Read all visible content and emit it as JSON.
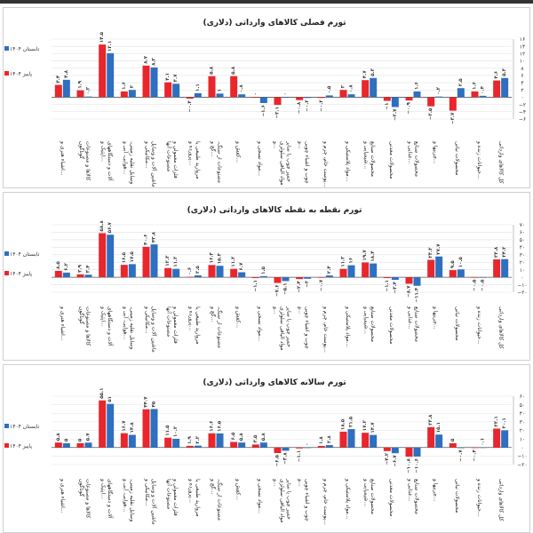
{
  "legend": {
    "summer": {
      "label": "تابستان ۱۴۰۴",
      "color": "#2e6fc0"
    },
    "autumn": {
      "label": "پاییز ۱۴۰۴",
      "color": "#e8262b"
    }
  },
  "categories": [
    "اشیاء هنری و...",
    "کالاها و مصنوعات گوناگون",
    "آلات و دستگاههای اپتیک و...",
    "وسایل نقلیه زمینی، هوایی، آبی و...",
    "ماشین آلات و وسایل مکانیکی و...",
    "فلزات معمولی و مصنوعات آنها",
    "مروارید طبیعی یا پرورده و...",
    "مصنوعات از سنگ، گچ و...",
    "کفش و...",
    "مواد نسجی و...",
    "خمیر چوب یا سایر مواد الیافی سلولزی و...",
    "چوب و اشیاء چوبی و...",
    "پوست خام، چرم و...",
    "مواد پلاستیکی و...",
    "محصولات صنایع شیمیایی و...",
    "محصولات معدنی",
    "محصولات صنایع غذایی و...",
    "چربیها و...",
    "محصولات نباتی",
    "حیوانات زنده و...",
    "کل کالاهای وارداتی"
  ],
  "chart_data": [
    {
      "type": "bar",
      "title": "تورم فصلی کالاهای وارداتی (دلاری)",
      "ylim": [
        -6,
        16
      ],
      "yticks": [
        -6,
        -4,
        -2,
        0,
        2,
        4,
        6,
        8,
        10,
        12,
        14,
        16
      ],
      "grid": true,
      "legend_position": "left",
      "series": [
        {
          "name": "پاییز ۱۴۰۴",
          "key": "autumn",
          "values": [
            3.4,
            1.9,
            14.5,
            1.6,
            8.7,
            4.1,
            -0.4,
            5.8,
            5.8,
            0,
            -2.1,
            -0.8,
            -0.2,
            2.0,
            4.7,
            -1.0,
            -0.9,
            -2.5,
            -3.7,
            1.6,
            4.6
          ]
        },
        {
          "name": "تابستان ۱۴۰۴",
          "key": "summer",
          "values": [
            4.8,
            0.2,
            12.1,
            2.0,
            8.2,
            3.7,
            1.1,
            1.0,
            0.8,
            -1.6,
            0,
            -0.2,
            0.5,
            0.8,
            5.3,
            -2.7,
            1.6,
            0.2,
            2.5,
            0.4,
            5.3
          ]
        }
      ]
    },
    {
      "type": "bar",
      "title": "تورم نقطه به نقطه کالاهای وارداتی (دلاری)",
      "ylim": [
        -20,
        70
      ],
      "yticks": [
        -20,
        -10,
        0,
        10,
        20,
        30,
        40,
        50,
        60,
        70
      ],
      "grid": true,
      "legend_position": "left",
      "series": [
        {
          "name": "پاییز ۱۴۰۴",
          "key": "autumn",
          "values": [
            8.5,
            3.9,
            58.8,
            16.5,
            40.6,
            12.3,
            0.6,
            16.3,
            11.2,
            -1.1,
            -7.6,
            -2.4,
            -0.7,
            11.2,
            19.7,
            -1.1,
            -8.7,
            23.2,
            9.5,
            -0.5,
            23.8
          ]
        },
        {
          "name": "تابستان ۱۴۰۴",
          "key": "summer",
          "values": [
            6.2,
            3.4,
            56.7,
            17.5,
            43.8,
            11.2,
            2.5,
            15.3,
            6.7,
            1.5,
            -5.1,
            -2.0,
            2.4,
            16.0,
            18.4,
            -3.4,
            -11.4,
            27.7,
            10.5,
            -0.5,
            24.2
          ]
        }
      ]
    },
    {
      "type": "bar",
      "title": "تورم سالانه کالاهای وارداتی (دلاری)",
      "ylim": [
        -20,
        60
      ],
      "yticks": [
        -20,
        -10,
        0,
        10,
        20,
        30,
        40,
        50,
        60
      ],
      "grid": true,
      "legend_position": "left",
      "series": [
        {
          "name": "پاییز ۱۴۰۴",
          "key": "autumn",
          "values": [
            5.8,
            5.0,
            55.1,
            16.7,
            44.7,
            11.5,
            1.9,
            16.6,
            6.5,
            3.5,
            -6.5,
            -1.1,
            1.8,
            18.5,
            17.2,
            -4.2,
            -10.8,
            23.8,
            5.0,
            -0.4,
            22.1
          ]
        },
        {
          "name": "تابستان ۱۴۰۴",
          "key": "summer",
          "values": [
            5.0,
            5.7,
            51.0,
            14.8,
            45.0,
            10.2,
            2.2,
            16.5,
            5.8,
            5.8,
            -3.8,
            0,
            2.8,
            21.5,
            14.7,
            -6.7,
            -10.6,
            15.1,
            -0.7,
            0.1,
            20.1
          ]
        }
      ]
    }
  ]
}
